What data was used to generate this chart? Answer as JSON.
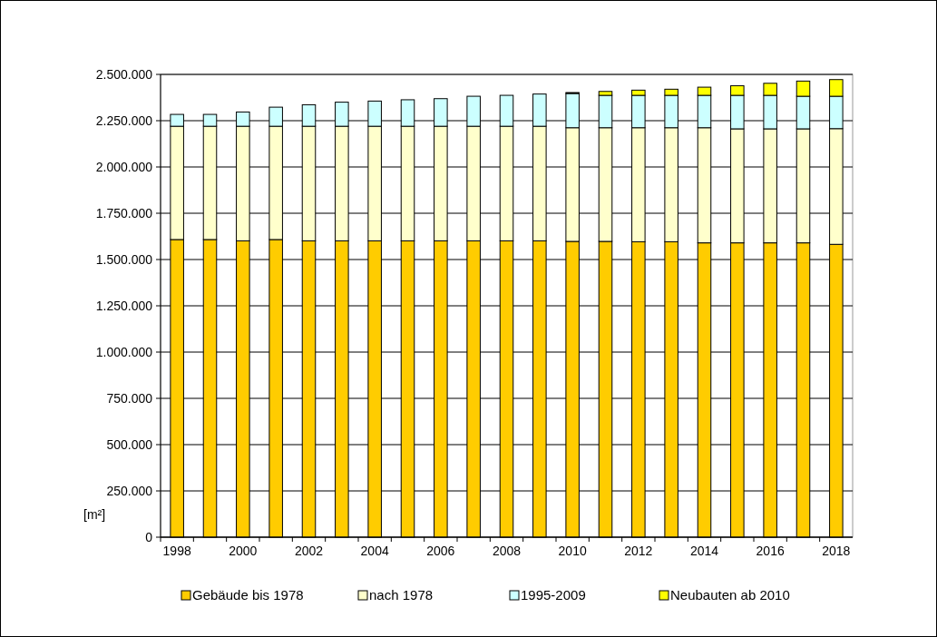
{
  "chart_data": {
    "type": "bar",
    "stacked": true,
    "ylabel": "[m²]",
    "categories": [
      "1998",
      null,
      "2000",
      null,
      "2002",
      null,
      "2004",
      null,
      "2006",
      null,
      "2008",
      null,
      "2010",
      null,
      "2012",
      null,
      "2014",
      null,
      "2016",
      null,
      "2018"
    ],
    "series": [
      {
        "name": "Gebäude bis 1978",
        "color": "#ffcc00",
        "values": [
          1608000,
          1608000,
          1601000,
          1608000,
          1601000,
          1601000,
          1601000,
          1601000,
          1601000,
          1601000,
          1601000,
          1601000,
          1598000,
          1598000,
          1596000,
          1596000,
          1590000,
          1590000,
          1590000,
          1590000,
          1582000
        ]
      },
      {
        "name": "nach 1978",
        "color": "#ffffcc",
        "values": [
          612000,
          612000,
          619000,
          612000,
          619000,
          619000,
          619000,
          619000,
          619000,
          619000,
          619000,
          619000,
          614000,
          614000,
          616000,
          616000,
          622000,
          616000,
          616000,
          616000,
          625000
        ]
      },
      {
        "name": "1995-2009",
        "color": "#ccffff",
        "values": [
          64000,
          64000,
          77000,
          103000,
          116000,
          130000,
          136000,
          143000,
          149000,
          162000,
          167000,
          174000,
          185000,
          175000,
          175000,
          175000,
          175000,
          181000,
          181000,
          176000,
          175000
        ]
      },
      {
        "name": "Neubauten ab 2010",
        "color": "#ffff00",
        "values": [
          0,
          0,
          0,
          0,
          0,
          0,
          0,
          0,
          0,
          0,
          0,
          0,
          5000,
          21000,
          28000,
          33000,
          44000,
          52000,
          65000,
          82000,
          90000
        ]
      }
    ],
    "ylim": [
      0,
      2500000
    ],
    "yticks": [
      0,
      {
        "value": 250000,
        "label": "250.000"
      },
      {
        "value": 500000,
        "label": "500.000"
      },
      {
        "value": 750000,
        "label": "750.000"
      },
      {
        "value": 1000000,
        "label": "1.000.000"
      },
      {
        "value": 1250000,
        "label": "1.250.000"
      },
      {
        "value": 1500000,
        "label": "1.500.000"
      },
      {
        "value": 1750000,
        "label": "1.750.000"
      },
      {
        "value": 2000000,
        "label": "2.000.000"
      },
      {
        "value": 2250000,
        "label": "2.250.000"
      },
      {
        "value": 2500000,
        "label": "2.500.000"
      }
    ],
    "grid": "y",
    "legend": "bottom"
  }
}
